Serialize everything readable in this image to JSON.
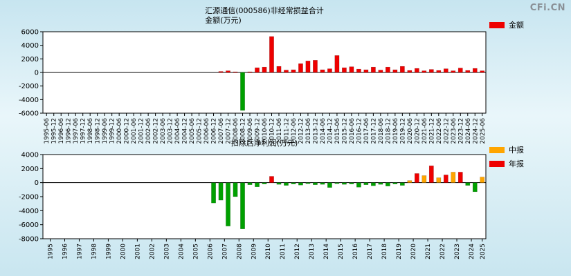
{
  "logo": "CFi.CN",
  "top_chart_header": {
    "line1": "汇源通信(000586)非经常损益合计",
    "line2": "金额(万元)"
  },
  "bottom_chart_header": {
    "title": "扣除后净利润(万元)"
  },
  "chart_data": [
    {
      "name": "non-recurring-pnl",
      "type": "bar",
      "title": "汇源通信(000586)非经常损益合计",
      "ylabel": "金额(万元)",
      "ylim": [
        -6000,
        6000
      ],
      "yticks": [
        6000,
        4000,
        2000,
        0,
        -2000,
        -4000,
        -6000
      ],
      "legend": [
        {
          "label": "金额",
          "color": "#ee0000"
        }
      ],
      "colors": {
        "positive": "#ee0000",
        "negative": "#00a000"
      },
      "grid": false,
      "categories": [
        "1995-06",
        "1995-12",
        "1996-06",
        "1996-12",
        "1997-06",
        "1997-12",
        "1998-06",
        "1998-12",
        "1999-06",
        "1999-12",
        "2000-06",
        "2000-12",
        "2001-06",
        "2001-12",
        "2002-06",
        "2002-12",
        "2003-06",
        "2003-12",
        "2004-06",
        "2004-12",
        "2005-06",
        "2005-12",
        "2006-06",
        "2006-12",
        "2007-06",
        "2007-12",
        "2008-06",
        "2008-12",
        "2009-06",
        "2009-12",
        "2010-06",
        "2010-12",
        "2011-06",
        "2011-12",
        "2012-06",
        "2012-12",
        "2013-06",
        "2013-12",
        "2014-06",
        "2014-12",
        "2015-06",
        "2015-12",
        "2016-06",
        "2016-12",
        "2017-06",
        "2017-12",
        "2018-06",
        "2018-12",
        "2019-06",
        "2019-12",
        "2020-06",
        "2020-12",
        "2021-06",
        "2021-12",
        "2022-06",
        "2022-12",
        "2023-06",
        "2023-12",
        "2024-06",
        "2024-12",
        "2025-06"
      ],
      "values": [
        0,
        0,
        0,
        0,
        0,
        0,
        0,
        0,
        0,
        0,
        0,
        0,
        0,
        0,
        0,
        0,
        0,
        0,
        0,
        0,
        0,
        0,
        0,
        0,
        150,
        250,
        100,
        -5600,
        100,
        700,
        800,
        5300,
        900,
        350,
        400,
        1300,
        1700,
        1800,
        400,
        550,
        2500,
        700,
        850,
        500,
        400,
        800,
        350,
        800,
        400,
        900,
        300,
        600,
        250,
        450,
        300,
        550,
        250,
        650,
        300,
        600,
        250
      ]
    },
    {
      "name": "net-profit-after-deduction",
      "type": "bar",
      "title": "扣除后净利润(万元)",
      "ylim": [
        -8000,
        4000
      ],
      "yticks": [
        4000,
        2000,
        0,
        -2000,
        -4000,
        -6000,
        -8000
      ],
      "legend": [
        {
          "label": "中报",
          "color": "#ffa500"
        },
        {
          "label": "年报",
          "color": "#ee0000"
        }
      ],
      "colors": {
        "interim": "#ffa500",
        "annual": "#ee0000",
        "negative": "#00a000"
      },
      "grid": false,
      "categories": [
        "1995-06",
        "1995-12",
        "1996-06",
        "1996-12",
        "1997-06",
        "1997-12",
        "1998-06",
        "1998-12",
        "1999-06",
        "1999-12",
        "2000-06",
        "2000-12",
        "2001-06",
        "2001-12",
        "2002-06",
        "2002-12",
        "2003-06",
        "2003-12",
        "2004-06",
        "2004-12",
        "2005-06",
        "2005-12",
        "2006-06",
        "2006-12",
        "2007-06",
        "2007-12",
        "2008-06",
        "2008-12",
        "2009-06",
        "2009-12",
        "2010-06",
        "2010-12",
        "2011-06",
        "2011-12",
        "2012-06",
        "2012-12",
        "2013-06",
        "2013-12",
        "2014-06",
        "2014-12",
        "2015-06",
        "2015-12",
        "2016-06",
        "2016-12",
        "2017-06",
        "2017-12",
        "2018-06",
        "2018-12",
        "2019-06",
        "2019-12",
        "2020-06",
        "2020-12",
        "2021-06",
        "2021-12",
        "2022-06",
        "2022-12",
        "2023-06",
        "2023-12",
        "2024-06",
        "2024-12",
        "2025-06"
      ],
      "values": [
        0,
        0,
        0,
        0,
        0,
        0,
        0,
        0,
        0,
        0,
        0,
        0,
        0,
        0,
        0,
        0,
        0,
        0,
        0,
        0,
        0,
        0,
        0,
        -2900,
        -2500,
        -6200,
        -2000,
        -6600,
        -300,
        -600,
        -200,
        900,
        -250,
        -400,
        -200,
        -350,
        -150,
        -300,
        -250,
        -700,
        -150,
        -250,
        -200,
        -650,
        -300,
        -450,
        -250,
        -500,
        -200,
        -400,
        300,
        1300,
        1000,
        2400,
        700,
        1100,
        1500,
        1500,
        -400,
        -1300,
        800
      ],
      "x_tick_labels": [
        "1995",
        "1996",
        "1997",
        "1998",
        "1999",
        "2000",
        "2001",
        "2002",
        "2003",
        "2004",
        "2005",
        "2006",
        "2007",
        "2008",
        "2009",
        "2010",
        "2011",
        "2012",
        "2013",
        "2014",
        "2015",
        "2016",
        "2017",
        "2018",
        "2019",
        "2020",
        "2021",
        "2022",
        "2023",
        "2024",
        "2025"
      ]
    }
  ]
}
